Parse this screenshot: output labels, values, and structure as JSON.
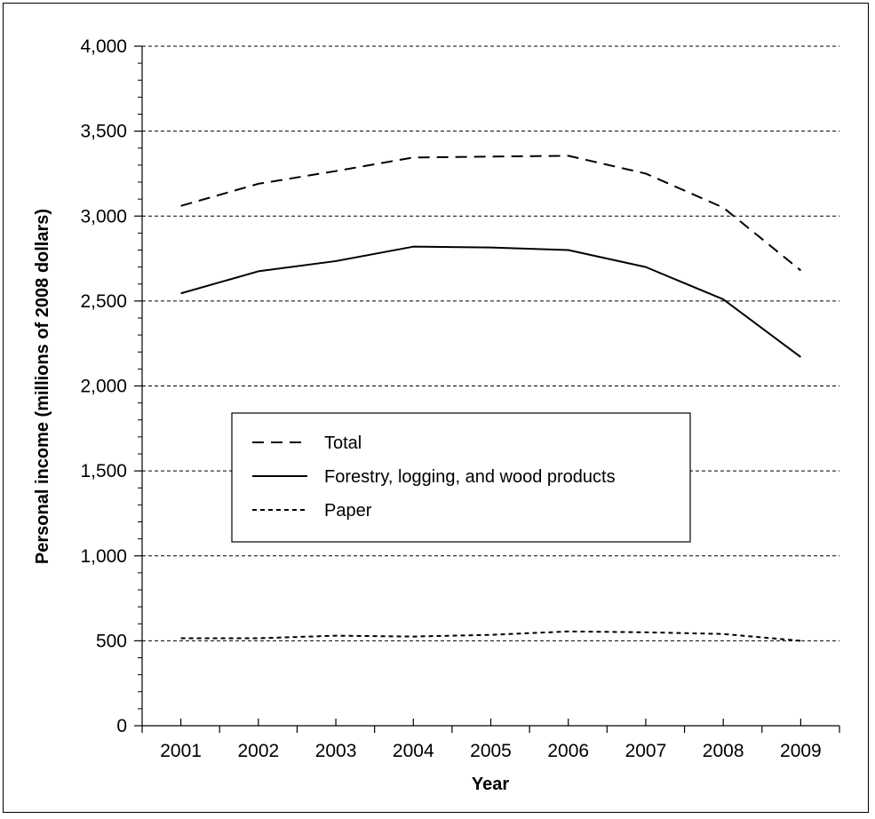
{
  "chart_data": {
    "type": "line",
    "xlabel": "Year",
    "ylabel": "Personal income (millions of 2008 dollars)",
    "categories": [
      "2001",
      "2002",
      "2003",
      "2004",
      "2005",
      "2006",
      "2007",
      "2008",
      "2009"
    ],
    "ylim": [
      0,
      4000
    ],
    "yticks": [
      0,
      500,
      1000,
      1500,
      2000,
      2500,
      3000,
      3500,
      4000
    ],
    "ytick_labels": [
      "0",
      "500",
      "1,000",
      "1,500",
      "2,000",
      "2,500",
      "3,000",
      "3,500",
      "4,000"
    ],
    "grid": "horizontal dashed at major ticks",
    "legend_position": "center-left",
    "series": [
      {
        "name": "Total",
        "style": "long-dash",
        "values": [
          3060,
          3190,
          3265,
          3345,
          3350,
          3355,
          3250,
          3050,
          2680
        ]
      },
      {
        "name": "Forestry, logging, and wood products",
        "style": "solid",
        "values": [
          2545,
          2675,
          2735,
          2820,
          2815,
          2800,
          2700,
          2510,
          2170
        ]
      },
      {
        "name": "Paper",
        "style": "short-dash",
        "values": [
          515,
          515,
          530,
          525,
          535,
          555,
          550,
          540,
          500
        ]
      }
    ],
    "colors": {
      "line": "#000000",
      "grid": "#000000",
      "background": "#ffffff"
    }
  }
}
